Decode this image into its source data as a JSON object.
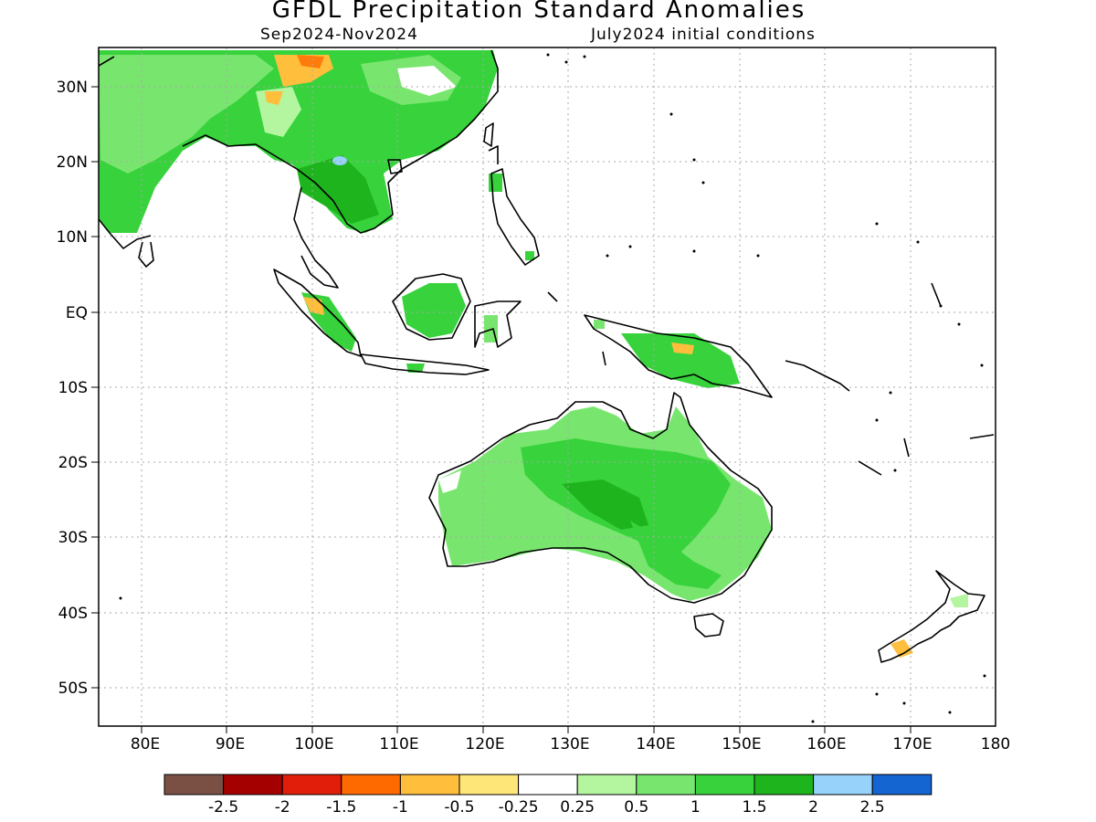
{
  "title": "GFDL Precipitation Standard Anomalies",
  "subtitle_period": "Sep2024-Nov2024",
  "subtitle_conditions": "July2024 initial conditions",
  "lat_labels": [
    "30N",
    "20N",
    "10N",
    "EQ",
    "10S",
    "20S",
    "30S",
    "40S",
    "50S"
  ],
  "lon_labels": [
    "80E",
    "90E",
    "100E",
    "110E",
    "120E",
    "130E",
    "140E",
    "150E",
    "160E",
    "170E",
    "180"
  ],
  "colorbar": {
    "colors": [
      "#7a5045",
      "#a50000",
      "#e01e0a",
      "#ff6a00",
      "#ffbe3c",
      "#ffe678",
      "#ffffff",
      "#b4f5a0",
      "#78e66e",
      "#37d23c",
      "#1eb41e",
      "#96d2fa",
      "#1464d2"
    ],
    "tick_labels": [
      "-2.5",
      "-2",
      "-1.5",
      "-1",
      "-0.5",
      "-0.25",
      "0.25",
      "0.5",
      "1",
      "1.5",
      "2",
      "2.5"
    ]
  }
}
